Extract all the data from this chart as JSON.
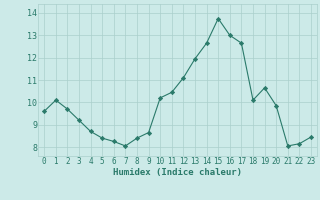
{
  "x": [
    0,
    1,
    2,
    3,
    4,
    5,
    6,
    7,
    8,
    9,
    10,
    11,
    12,
    13,
    14,
    15,
    16,
    17,
    18,
    19,
    20,
    21,
    22,
    23
  ],
  "y": [
    9.6,
    10.1,
    9.7,
    9.2,
    8.7,
    8.4,
    8.25,
    8.05,
    8.4,
    8.65,
    10.2,
    10.45,
    11.1,
    11.95,
    12.65,
    13.75,
    13.0,
    12.65,
    10.1,
    10.65,
    9.85,
    8.05,
    8.15,
    8.45
  ],
  "title": "",
  "xlabel": "Humidex (Indice chaleur)",
  "ylabel": "",
  "xlim": [
    -0.5,
    23.5
  ],
  "ylim": [
    7.6,
    14.4
  ],
  "yticks": [
    8,
    9,
    10,
    11,
    12,
    13,
    14
  ],
  "xticks": [
    0,
    1,
    2,
    3,
    4,
    5,
    6,
    7,
    8,
    9,
    10,
    11,
    12,
    13,
    14,
    15,
    16,
    17,
    18,
    19,
    20,
    21,
    22,
    23
  ],
  "line_color": "#2a7a6a",
  "marker_color": "#2a7a6a",
  "bg_color": "#cceae8",
  "grid_color": "#aacfcc",
  "label_color": "#2a7a6a",
  "tick_fontsize": 5.5,
  "xlabel_fontsize": 6.5
}
